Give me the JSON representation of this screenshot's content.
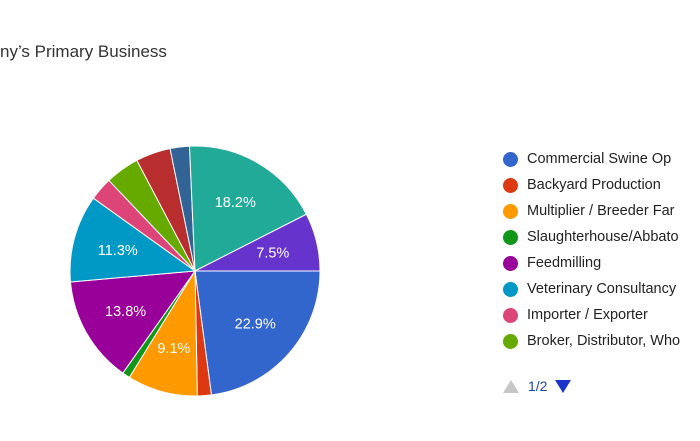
{
  "chart_data": {
    "type": "pie",
    "title": "ny’s Primary Business",
    "slices": [
      {
        "label": "Commercial Swine Op",
        "value": 22.9,
        "display": "22.9%",
        "color": "#3366cc"
      },
      {
        "label": "Backyard Production",
        "value": 1.8,
        "display": "",
        "color": "#dc3912"
      },
      {
        "label": "Multiplier / Breeder Far",
        "value": 9.1,
        "display": "9.1%",
        "color": "#ff9900"
      },
      {
        "label": "Slaughterhouse/Abbato",
        "value": 1.0,
        "display": "",
        "color": "#109618"
      },
      {
        "label": "Feedmilling",
        "value": 13.8,
        "display": "13.8%",
        "color": "#990099"
      },
      {
        "label": "Veterinary Consultancy",
        "value": 11.3,
        "display": "11.3%",
        "color": "#0099c6"
      },
      {
        "label": "Importer / Exporter",
        "value": 3.0,
        "display": "",
        "color": "#dd4477"
      },
      {
        "label": "Broker, Distributor, Who",
        "value": 4.4,
        "display": "",
        "color": "#66aa00"
      },
      {
        "label": "",
        "value": 4.5,
        "display": "",
        "color": "#b82e2e"
      },
      {
        "label": "",
        "value": 2.5,
        "display": "",
        "color": "#316395"
      },
      {
        "label": "",
        "value": 18.2,
        "display": "18.2%",
        "color": "#22aa99"
      },
      {
        "label": "",
        "value": 7.5,
        "display": "7.5%",
        "color": "#6633cc"
      }
    ],
    "legend": {
      "position": "right",
      "entries": [
        "Commercial Swine Op",
        "Backyard Production",
        "Multiplier / Breeder Far",
        "Slaughterhouse/Abbato",
        "Feedmilling",
        "Veterinary Consultancy",
        "Importer / Exporter",
        "Broker, Distributor, Who"
      ]
    }
  },
  "pager": {
    "text": "1/2"
  }
}
